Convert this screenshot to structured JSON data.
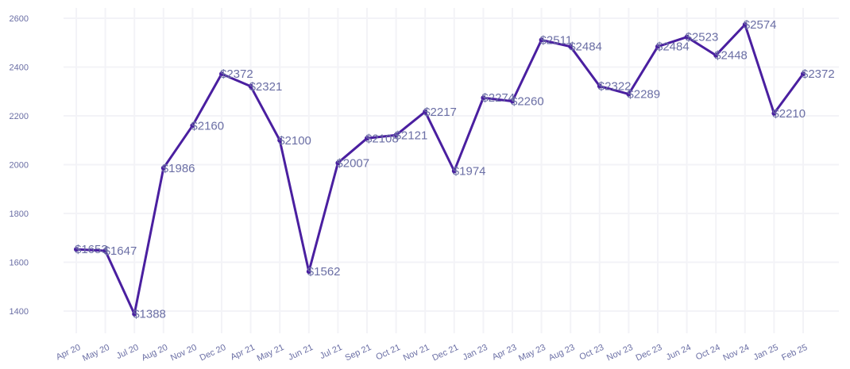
{
  "chart_data": {
    "type": "line",
    "title": "",
    "xlabel": "",
    "ylabel": "",
    "x": [
      "Apr 20",
      "May 20",
      "Jul 20",
      "Aug 20",
      "Nov 20",
      "Dec 20",
      "Apr 21",
      "May 21",
      "Jun 21",
      "Jul 21",
      "Sep 21",
      "Oct 21",
      "Nov 21",
      "Dec 21",
      "Jan 23",
      "Apr 23",
      "May 23",
      "Aug 23",
      "Oct 23",
      "Nov 23",
      "Dec 23",
      "Jun 24",
      "Oct 24",
      "Nov 24",
      "Jan 25",
      "Feb 25"
    ],
    "series": [
      {
        "values": [
          1653,
          1647,
          1388,
          1986,
          2160,
          2372,
          2321,
          2100,
          1562,
          2007,
          2108,
          2121,
          2217,
          1974,
          2274,
          2260,
          2511,
          2484,
          2322,
          2289,
          2484,
          2523,
          2448,
          2574,
          2210,
          2372
        ],
        "labels": [
          "$1653",
          "$1647",
          "$1388",
          "$1986",
          "$2160",
          "$2372",
          "$2321",
          "$2100",
          "$1562",
          "$2007",
          "$2108",
          "$2121",
          "$2217",
          "$1974",
          "$2274",
          "$2260",
          "$2511",
          "$2484",
          "$2322",
          "$2289",
          "$2484",
          "$2523",
          "$2448",
          "$2574",
          "$2210",
          "$2372"
        ]
      }
    ],
    "ylim": [
      1330,
      2640
    ],
    "yticks": [
      1400,
      1600,
      1800,
      2000,
      2200,
      2400,
      2600
    ],
    "grid": true,
    "line_color": "#4a1fa0",
    "label_color": "#6b6fa5"
  }
}
